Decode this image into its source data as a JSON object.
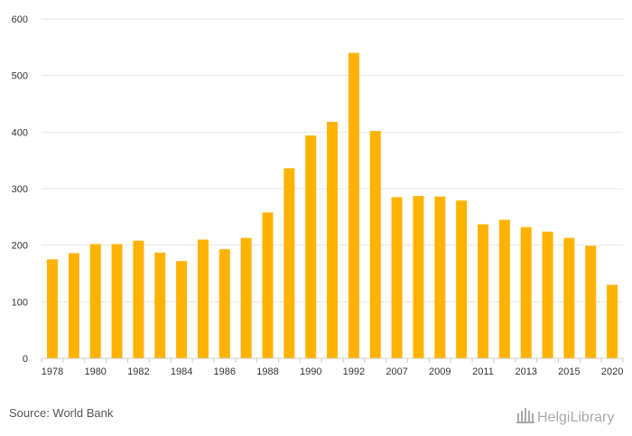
{
  "chart_data": {
    "type": "bar",
    "categories": [
      "1978",
      "1979",
      "1980",
      "1981",
      "1982",
      "1983",
      "1984",
      "1985",
      "1986",
      "1987",
      "1988",
      "1989",
      "1990",
      "1991",
      "1992",
      "1993",
      "2007",
      "2008",
      "2009",
      "2010",
      "2011",
      "2012",
      "2013",
      "2014",
      "2015",
      "2016",
      "2020"
    ],
    "x_tick_labels": [
      "1978",
      "",
      "1980",
      "",
      "1982",
      "",
      "1984",
      "",
      "1986",
      "",
      "1988",
      "",
      "1990",
      "",
      "1992",
      "",
      "2007",
      "",
      "2009",
      "",
      "2011",
      "",
      "2013",
      "",
      "2015",
      "",
      "2020"
    ],
    "values": [
      175,
      186,
      202,
      202,
      208,
      187,
      172,
      210,
      193,
      213,
      258,
      336,
      394,
      418,
      540,
      402,
      285,
      287,
      286,
      279,
      237,
      245,
      232,
      224,
      213,
      199,
      130
    ],
    "ylim": [
      0,
      600
    ],
    "yticks": [
      0,
      100,
      200,
      300,
      400,
      500,
      600
    ],
    "grid": true,
    "bar_color": "#FFB300",
    "title": "",
    "xlabel": "",
    "ylabel": ""
  },
  "footer": {
    "source": "Source: World Bank",
    "logo_text": "HelgiLibrary"
  }
}
